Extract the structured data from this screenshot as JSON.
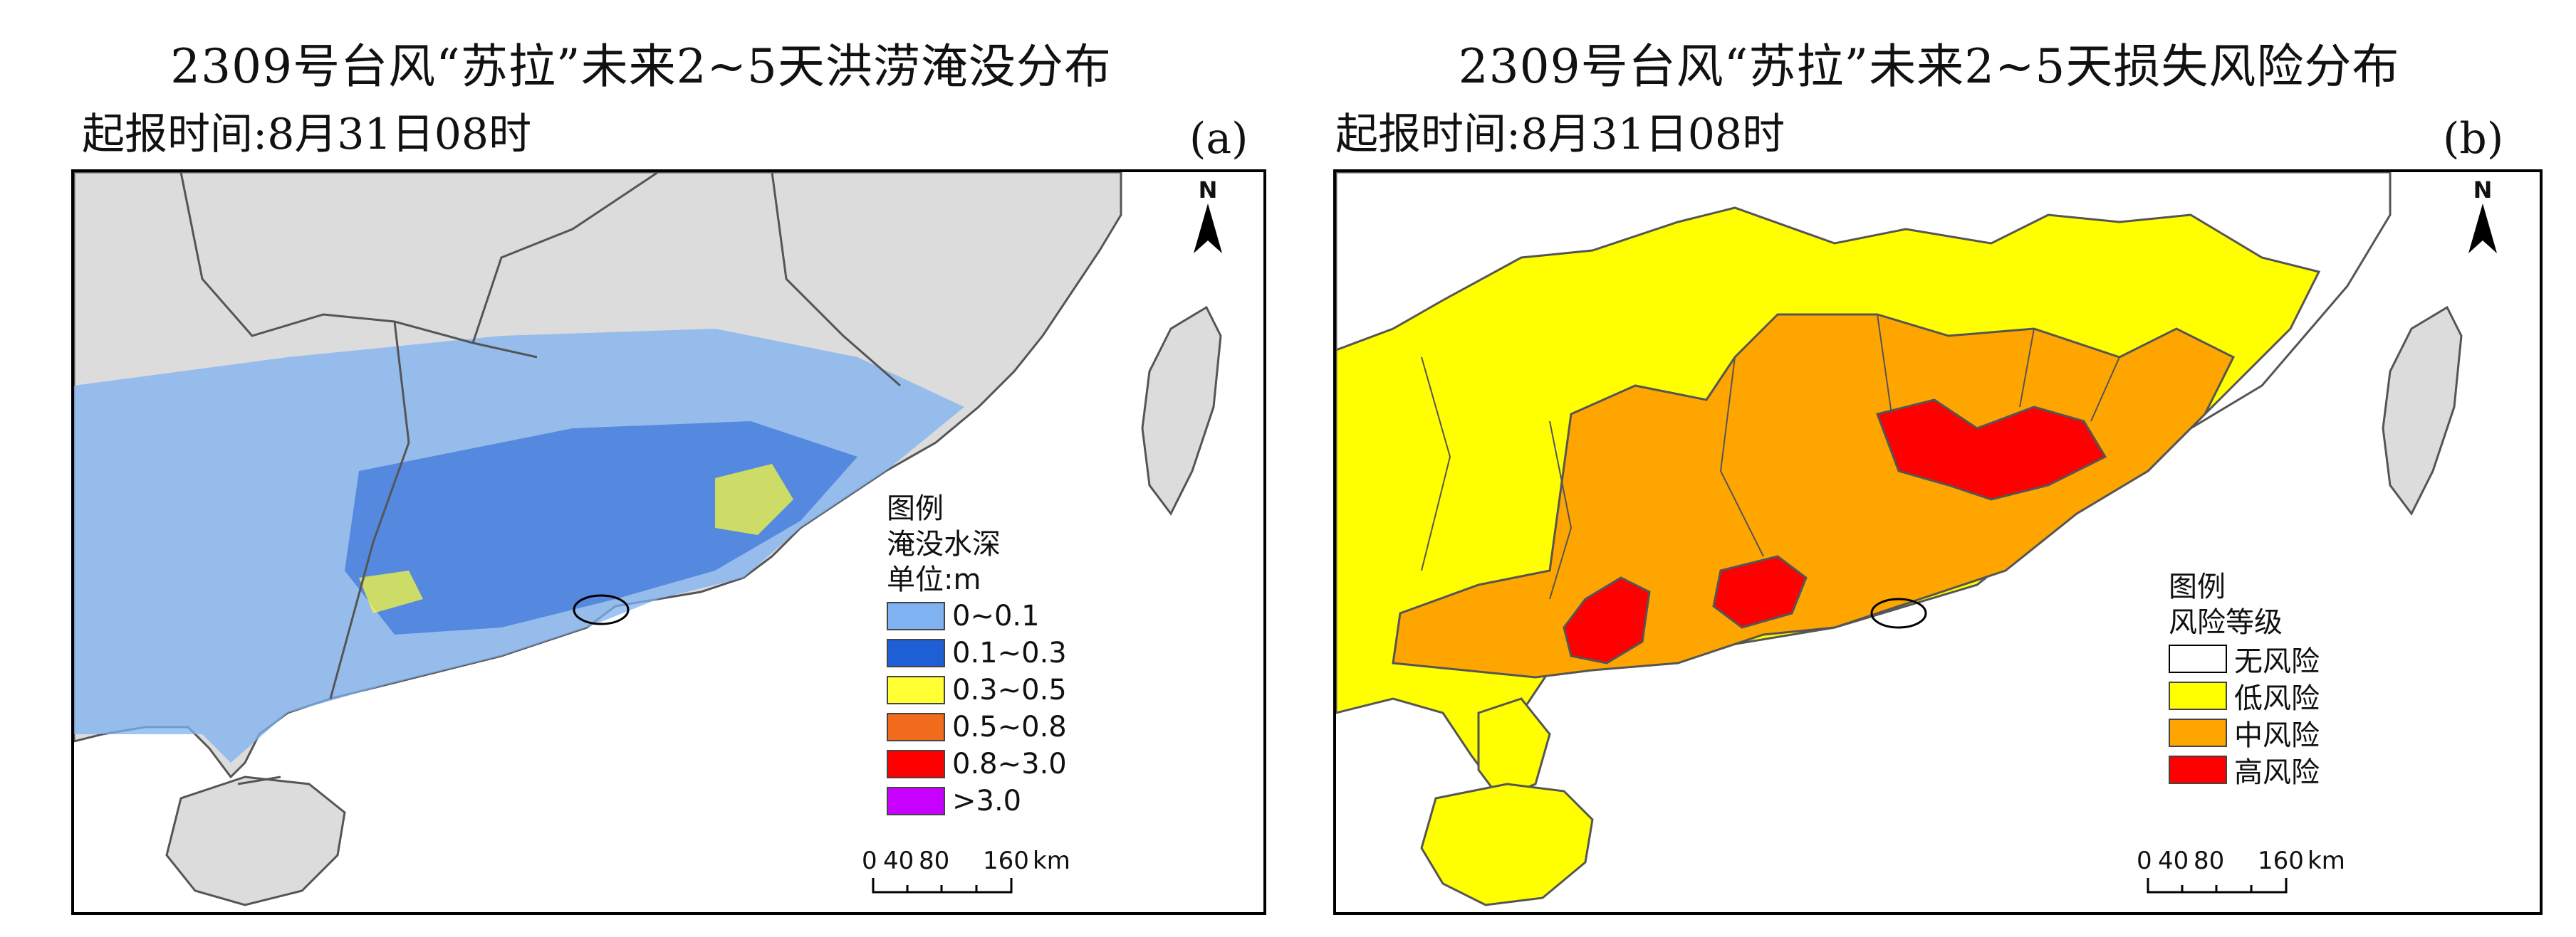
{
  "panel_a": {
    "title": "2309号台风“苏拉”未来2~5天洪涝淹没分布",
    "issue_time": "起报时间:8月31日08时",
    "panel_label": "(a)",
    "north_label": "N",
    "legend": {
      "title": "图例",
      "subtitle": "淹没水深",
      "unit": "单位:m",
      "items": [
        {
          "label": "0~0.1",
          "color": "#7fb2f0"
        },
        {
          "label": "0.1~0.3",
          "color": "#1f5fd6"
        },
        {
          "label": "0.3~0.5",
          "color": "#ffff33"
        },
        {
          "label": "0.5~0.8",
          "color": "#f26b1d"
        },
        {
          "label": "0.8~3.0",
          "color": "#ff0000"
        },
        {
          "label": ">3.0",
          "color": "#c800ff"
        }
      ]
    },
    "scale": {
      "ticks": [
        "0",
        "40",
        "80",
        "160"
      ],
      "unit": "km"
    }
  },
  "panel_b": {
    "title": "2309号台风“苏拉”未来2~5天损失风险分布",
    "issue_time": "起报时间:8月31日08时",
    "panel_label": "(b)",
    "north_label": "N",
    "legend": {
      "title": "图例",
      "subtitle": "风险等级",
      "items": [
        {
          "label": "无风险",
          "color": "#ffffff"
        },
        {
          "label": "低风险",
          "color": "#ffff00"
        },
        {
          "label": "中风险",
          "color": "#ffa500"
        },
        {
          "label": "高风险",
          "color": "#ff0000"
        }
      ]
    },
    "scale": {
      "ticks": [
        "0",
        "40",
        "80",
        "160"
      ],
      "unit": "km"
    }
  },
  "colors": {
    "land_background": "#dcdcdc",
    "sea": "#ffffff",
    "boundary": "#555555",
    "flood_light": "#7fb2f0",
    "flood_mid": "#1f5fd6"
  }
}
